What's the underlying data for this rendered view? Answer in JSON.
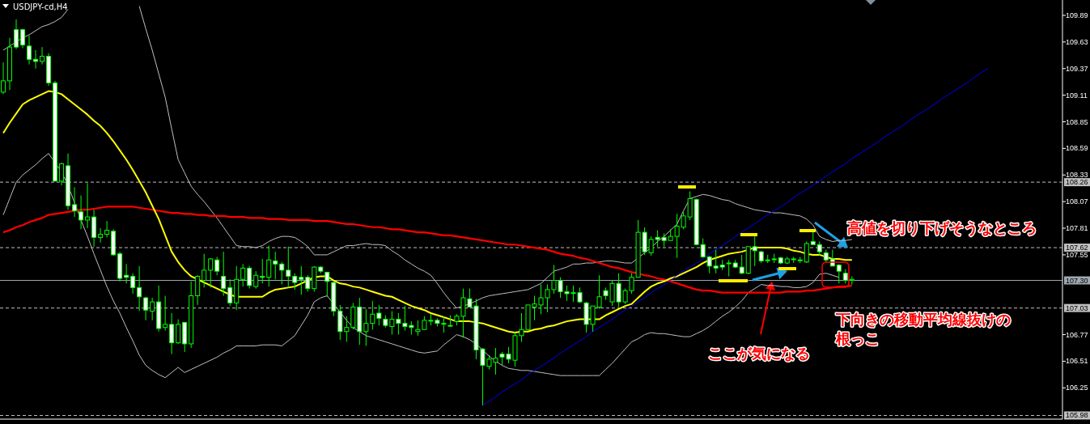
{
  "chart_data": {
    "type": "candlestick",
    "title": "USDJPY-cd,H4",
    "categories": [
      null,
      null,
      null,
      null,
      null,
      null,
      null,
      null,
      null,
      null,
      null,
      null,
      null,
      null,
      null,
      null,
      null,
      null,
      null,
      null,
      null,
      null,
      null,
      null,
      null,
      null,
      null,
      null,
      null,
      null,
      null,
      null,
      null,
      null,
      null,
      null,
      null,
      null,
      null,
      null,
      null,
      null,
      null,
      null,
      null,
      null,
      null,
      null,
      null,
      null,
      null,
      null,
      null,
      null,
      null,
      null,
      null,
      null,
      null,
      null,
      null,
      null,
      null,
      null,
      null,
      null,
      null,
      null,
      null,
      null,
      null,
      null,
      null,
      null,
      null,
      null,
      null,
      null,
      null,
      null,
      null,
      null,
      null,
      null,
      null,
      null,
      null,
      null,
      null,
      null,
      null,
      null,
      null,
      null,
      null,
      null,
      null,
      null,
      null,
      null,
      null,
      null,
      null,
      null,
      null,
      null,
      null,
      null,
      null,
      null,
      null,
      null,
      null,
      null,
      null,
      null,
      null,
      null,
      null,
      null,
      null,
      null,
      null,
      null,
      null,
      null,
      null,
      null,
      null,
      null,
      null,
      null,
      null,
      null,
      null,
      null,
      null,
      null,
      null,
      null,
      null,
      null,
      null,
      null,
      null,
      null,
      null,
      null,
      null,
      null,
      null,
      null,
      null,
      null,
      null,
      null,
      null,
      null,
      null,
      null,
      null,
      null,
      null,
      null
    ],
    "ohlc": [
      [
        109.14,
        109.43,
        109.12,
        109.25
      ],
      [
        109.25,
        109.67,
        109.16,
        109.58
      ],
      [
        109.75,
        109.85,
        109.56,
        109.58
      ],
      [
        109.75,
        109.76,
        109.57,
        109.6
      ],
      [
        109.59,
        109.69,
        109.41,
        109.46
      ],
      [
        109.46,
        109.55,
        109.37,
        109.44
      ],
      [
        109.44,
        109.58,
        109.41,
        109.49
      ],
      [
        109.49,
        109.52,
        109.2,
        109.23
      ],
      [
        109.23,
        109.25,
        108.27,
        108.27
      ],
      [
        108.27,
        108.45,
        108.23,
        108.44
      ],
      [
        108.42,
        108.54,
        107.99,
        108.03
      ],
      [
        108.04,
        108.21,
        107.92,
        107.98
      ],
      [
        107.97,
        108.13,
        107.8,
        107.89
      ],
      [
        107.89,
        108.25,
        107.81,
        107.92
      ],
      [
        107.92,
        107.99,
        107.63,
        107.72
      ],
      [
        107.72,
        107.81,
        107.67,
        107.75
      ],
      [
        107.75,
        107.88,
        107.72,
        107.79
      ],
      [
        107.78,
        107.8,
        107.54,
        107.55
      ],
      [
        107.56,
        107.58,
        107.29,
        107.32
      ],
      [
        107.35,
        107.46,
        107.27,
        107.33
      ],
      [
        107.34,
        107.37,
        107.17,
        107.23
      ],
      [
        107.23,
        107.44,
        107.0,
        107.14
      ],
      [
        107.13,
        107.14,
        106.91,
        107.01
      ],
      [
        107.0,
        107.13,
        106.91,
        107.09
      ],
      [
        107.09,
        107.25,
        106.8,
        106.83
      ],
      [
        106.84,
        107.15,
        106.81,
        106.87
      ],
      [
        106.87,
        106.98,
        106.58,
        106.69
      ],
      [
        106.69,
        106.92,
        106.68,
        106.87
      ],
      [
        106.89,
        106.89,
        106.6,
        106.68
      ],
      [
        106.68,
        107.29,
        106.64,
        107.15
      ],
      [
        107.15,
        107.35,
        107.06,
        107.34
      ],
      [
        107.3,
        107.56,
        107.23,
        107.4
      ],
      [
        107.4,
        107.52,
        107.23,
        107.51
      ],
      [
        107.5,
        107.53,
        107.35,
        107.39
      ],
      [
        107.34,
        107.58,
        107.15,
        107.22
      ],
      [
        107.23,
        107.31,
        107.05,
        107.08
      ],
      [
        107.08,
        107.44,
        107.01,
        107.31
      ],
      [
        107.31,
        107.46,
        107.24,
        107.42
      ],
      [
        107.42,
        107.44,
        107.22,
        107.25
      ],
      [
        107.24,
        107.39,
        107.22,
        107.35
      ],
      [
        107.34,
        107.51,
        107.27,
        107.33
      ],
      [
        107.33,
        107.64,
        107.24,
        107.5
      ],
      [
        107.49,
        107.58,
        107.31,
        107.46
      ],
      [
        107.46,
        107.48,
        107.26,
        107.4
      ],
      [
        107.4,
        107.63,
        107.23,
        107.34
      ],
      [
        107.34,
        107.37,
        107.21,
        107.28
      ],
      [
        107.33,
        107.44,
        107.16,
        107.31
      ],
      [
        107.33,
        107.35,
        107.19,
        107.22
      ],
      [
        107.22,
        107.44,
        107.19,
        107.43
      ],
      [
        107.43,
        107.44,
        107.37,
        107.39
      ],
      [
        107.38,
        107.38,
        107.14,
        107.29
      ],
      [
        107.28,
        107.29,
        106.95,
        107.0
      ],
      [
        107.0,
        107.06,
        106.72,
        106.8
      ],
      [
        106.8,
        106.95,
        106.7,
        106.84
      ],
      [
        106.84,
        107.08,
        106.82,
        107.04
      ],
      [
        107.04,
        107.13,
        106.67,
        106.8
      ],
      [
        106.8,
        107.02,
        106.66,
        106.88
      ],
      [
        106.88,
        107.1,
        106.82,
        106.97
      ],
      [
        106.98,
        107.06,
        106.86,
        106.93
      ],
      [
        106.92,
        106.96,
        106.84,
        106.86
      ],
      [
        106.85,
        107.0,
        106.77,
        106.92
      ],
      [
        106.92,
        106.98,
        106.77,
        106.88
      ],
      [
        106.88,
        107.05,
        106.81,
        106.85
      ],
      [
        106.86,
        106.9,
        106.77,
        106.84
      ],
      [
        106.8,
        106.91,
        106.76,
        106.82
      ],
      [
        106.82,
        106.95,
        106.82,
        106.91
      ],
      [
        106.91,
        106.97,
        106.86,
        106.91
      ],
      [
        106.91,
        106.93,
        106.85,
        106.88
      ],
      [
        106.88,
        106.95,
        106.79,
        106.88
      ],
      [
        106.86,
        106.96,
        106.85,
        106.86
      ],
      [
        106.9,
        106.97,
        106.86,
        106.95
      ],
      [
        106.95,
        107.22,
        106.74,
        107.13
      ],
      [
        107.12,
        107.22,
        107.04,
        107.04
      ],
      [
        107.05,
        107.12,
        106.53,
        106.62
      ],
      [
        106.63,
        106.64,
        106.08,
        106.47
      ],
      [
        106.46,
        106.57,
        106.43,
        106.53
      ],
      [
        106.5,
        106.64,
        106.38,
        106.54
      ],
      [
        106.58,
        106.6,
        106.47,
        106.55
      ],
      [
        106.58,
        106.65,
        106.49,
        106.53
      ],
      [
        106.52,
        106.79,
        106.46,
        106.76
      ],
      [
        106.76,
        106.98,
        106.7,
        106.82
      ],
      [
        106.82,
        107.06,
        106.82,
        107.06
      ],
      [
        107.04,
        107.15,
        106.91,
        107.07
      ],
      [
        107.06,
        107.26,
        106.97,
        107.13
      ],
      [
        107.13,
        107.26,
        106.99,
        107.21
      ],
      [
        107.21,
        107.45,
        107.17,
        107.3
      ],
      [
        107.3,
        107.33,
        107.13,
        107.19
      ],
      [
        107.19,
        107.25,
        107.1,
        107.17
      ],
      [
        107.18,
        107.25,
        107.09,
        107.18
      ],
      [
        107.18,
        107.23,
        107.08,
        107.09
      ],
      [
        107.08,
        107.09,
        106.79,
        106.87
      ],
      [
        106.87,
        107.05,
        106.8,
        107.05
      ],
      [
        107.04,
        107.35,
        107.02,
        107.14
      ],
      [
        107.2,
        107.23,
        107.11,
        107.15
      ],
      [
        107.09,
        107.3,
        107.05,
        107.27
      ],
      [
        107.27,
        107.37,
        107.04,
        107.09
      ],
      [
        107.09,
        107.22,
        107.07,
        107.2
      ],
      [
        107.2,
        107.37,
        107.17,
        107.33
      ],
      [
        107.33,
        107.89,
        107.33,
        107.77
      ],
      [
        107.77,
        107.82,
        107.55,
        107.58
      ],
      [
        107.57,
        107.73,
        107.54,
        107.7
      ],
      [
        107.72,
        107.79,
        107.63,
        107.7
      ],
      [
        107.72,
        107.76,
        107.63,
        107.69
      ],
      [
        107.69,
        107.8,
        107.69,
        107.73
      ],
      [
        107.73,
        107.95,
        107.52,
        107.83
      ],
      [
        107.82,
        107.97,
        107.8,
        107.93
      ],
      [
        107.92,
        108.17,
        107.89,
        108.1
      ],
      [
        108.09,
        108.1,
        107.65,
        107.65
      ],
      [
        107.65,
        107.71,
        107.52,
        107.53
      ],
      [
        107.53,
        107.54,
        107.37,
        107.44
      ],
      [
        107.44,
        107.6,
        107.37,
        107.42
      ],
      [
        107.45,
        107.5,
        107.4,
        107.43
      ],
      [
        107.47,
        107.5,
        107.34,
        107.47
      ],
      [
        107.47,
        107.5,
        107.42,
        107.43
      ],
      [
        107.43,
        107.55,
        107.36,
        107.37
      ],
      [
        107.37,
        107.63,
        107.36,
        107.63
      ],
      [
        107.63,
        107.73,
        107.44,
        107.59
      ],
      [
        107.58,
        107.59,
        107.47,
        107.49
      ],
      [
        107.5,
        107.55,
        107.47,
        107.5
      ],
      [
        107.51,
        107.56,
        107.47,
        107.51
      ],
      [
        107.52,
        107.53,
        107.46,
        107.47
      ],
      [
        107.47,
        107.53,
        107.46,
        107.51
      ],
      [
        107.51,
        107.53,
        107.47,
        107.51
      ],
      [
        107.5,
        107.53,
        107.47,
        107.5
      ],
      [
        107.48,
        107.68,
        107.47,
        107.66
      ],
      [
        107.68,
        107.79,
        107.65,
        107.65
      ],
      [
        107.65,
        107.68,
        107.54,
        107.58
      ],
      [
        107.57,
        107.6,
        107.48,
        107.5
      ],
      [
        107.51,
        107.6,
        107.44,
        107.44
      ],
      [
        107.45,
        107.46,
        107.27,
        107.39
      ],
      [
        107.37,
        107.41,
        107.27,
        107.3
      ],
      [
        107.3,
        107.34,
        107.26,
        107.31
      ],
      null,
      null,
      null,
      null,
      null,
      null,
      null,
      null,
      null,
      null,
      null,
      null,
      null,
      null,
      null,
      null,
      null,
      null,
      null,
      null,
      null,
      null,
      null,
      null,
      null,
      null,
      null,
      null,
      null,
      null,
      null,
      null
    ],
    "series": [
      {
        "type": "line",
        "color": "#c0c0c0",
        "values": [
          109.55,
          109.59,
          109.63,
          109.67,
          109.7,
          109.74,
          109.78,
          109.8,
          109.83,
          109.87,
          109.95,
          null,
          null,
          null,
          null,
          null,
          null,
          null,
          null,
          null,
          null,
          109.98,
          109.76,
          109.55,
          109.32,
          109.09,
          108.78,
          108.48,
          108.35,
          108.22,
          108.14,
          108.07,
          107.99,
          107.91,
          107.82,
          107.73,
          107.64,
          107.63,
          107.63,
          107.62,
          107.64,
          107.68,
          107.71,
          107.73,
          107.73,
          107.72,
          107.68,
          107.63,
          107.55,
          107.55,
          107.55,
          107.58,
          107.61,
          107.64,
          107.64,
          107.65,
          107.66,
          107.65,
          107.65,
          107.64,
          107.59,
          107.55,
          107.5,
          107.46,
          107.42,
          107.39,
          107.35,
          107.27,
          107.18,
          107.1,
          107.03,
          107.05,
          107.07,
          107.1,
          107.13,
          107.15,
          107.16,
          107.17,
          107.18,
          107.19,
          107.2,
          107.21,
          107.24,
          107.27,
          107.33,
          107.39,
          107.41,
          107.43,
          107.46,
          107.46,
          107.47,
          107.47,
          107.48,
          107.49,
          107.49,
          107.48,
          107.47,
          107.47,
          107.52,
          107.57,
          107.62,
          107.68,
          107.73,
          107.79,
          107.85,
          107.98,
          108.1,
          108.12,
          108.14,
          108.13,
          108.11,
          108.09,
          108.08,
          108.05,
          108.03,
          108.01,
          107.99,
          107.98,
          107.97,
          107.96,
          107.96,
          107.95,
          107.94,
          107.93,
          107.9,
          107.84,
          107.73,
          107.7,
          107.68,
          107.69,
          107.69,
          107.7,
          null,
          null,
          null,
          null,
          null,
          null,
          null,
          null,
          null,
          null,
          null,
          null,
          null,
          null,
          null,
          null,
          null,
          null,
          null,
          null,
          null,
          null,
          null,
          null,
          null,
          null,
          null,
          null,
          null,
          null,
          null,
          null
        ]
      },
      {
        "type": "line",
        "color": "#c0c0c0",
        "values": [
          107.94,
          108.1,
          108.26,
          108.33,
          108.38,
          108.43,
          108.49,
          108.54,
          108.45,
          108.36,
          108.23,
          108.06,
          107.89,
          107.73,
          107.56,
          107.4,
          107.24,
          107.1,
          106.98,
          106.84,
          106.71,
          106.57,
          106.47,
          106.42,
          106.38,
          106.35,
          106.4,
          106.45,
          106.4,
          106.43,
          106.46,
          106.49,
          106.52,
          106.55,
          106.59,
          106.62,
          106.66,
          106.66,
          106.66,
          106.66,
          106.67,
          106.67,
          106.67,
          106.66,
          106.71,
          106.76,
          106.86,
          106.96,
          107.09,
          107.13,
          107.15,
          107.07,
          106.99,
          106.91,
          106.84,
          106.8,
          106.76,
          106.74,
          106.72,
          106.7,
          106.68,
          106.66,
          106.64,
          106.62,
          106.6,
          106.59,
          106.6,
          106.61,
          106.67,
          106.72,
          106.77,
          106.75,
          106.72,
          106.68,
          106.62,
          106.56,
          106.51,
          106.47,
          106.44,
          106.43,
          106.42,
          106.42,
          106.41,
          106.4,
          106.39,
          106.38,
          106.37,
          106.37,
          106.37,
          106.37,
          106.37,
          106.37,
          106.37,
          106.43,
          106.49,
          106.56,
          106.63,
          106.7,
          106.73,
          106.77,
          106.79,
          106.78,
          106.78,
          106.77,
          106.76,
          106.75,
          106.75,
          106.78,
          106.81,
          106.85,
          106.9,
          106.95,
          106.99,
          107.04,
          107.1,
          107.18,
          107.22,
          107.26,
          107.25,
          107.25,
          107.24,
          107.24,
          107.23,
          107.23,
          107.24,
          107.28,
          107.36,
          107.37,
          107.35,
          107.33,
          null,
          null,
          null,
          null,
          null,
          null,
          null,
          null,
          null,
          null,
          null,
          null,
          null,
          null,
          null,
          null,
          null,
          null,
          null,
          null,
          null,
          null,
          null,
          null,
          null,
          null,
          null,
          null,
          null,
          null,
          null,
          null,
          null,
          null
        ]
      },
      {
        "type": "line",
        "color": "#ff0000",
        "values": [
          107.77,
          107.79,
          107.82,
          107.84,
          107.87,
          107.89,
          107.91,
          107.94,
          107.95,
          107.96,
          107.97,
          107.98,
          107.99,
          107.99,
          108.0,
          108.01,
          108.02,
          108.02,
          108.02,
          108.02,
          108.02,
          108.01,
          108.0,
          107.99,
          107.98,
          107.97,
          107.96,
          107.96,
          107.95,
          107.95,
          107.94,
          107.94,
          107.93,
          107.93,
          107.93,
          107.92,
          107.92,
          107.92,
          107.91,
          107.91,
          107.91,
          107.9,
          107.9,
          107.9,
          107.89,
          107.89,
          107.89,
          107.89,
          107.88,
          107.88,
          107.88,
          107.87,
          107.86,
          107.85,
          107.85,
          107.84,
          107.83,
          107.82,
          107.82,
          107.81,
          107.8,
          107.8,
          107.79,
          107.78,
          107.77,
          107.77,
          107.76,
          107.75,
          107.74,
          107.74,
          107.73,
          107.72,
          107.71,
          107.7,
          107.69,
          107.68,
          107.67,
          107.66,
          107.65,
          107.65,
          107.64,
          107.63,
          107.62,
          107.61,
          107.6,
          107.58,
          107.56,
          107.55,
          107.54,
          107.52,
          107.51,
          107.49,
          107.47,
          107.45,
          107.43,
          107.42,
          107.4,
          107.38,
          107.37,
          107.35,
          107.34,
          107.32,
          107.31,
          107.29,
          107.27,
          107.25,
          107.23,
          107.21,
          107.2,
          107.2,
          107.19,
          107.18,
          107.18,
          107.18,
          107.18,
          107.18,
          107.18,
          107.18,
          107.18,
          107.18,
          107.18,
          107.19,
          107.19,
          107.19,
          107.2,
          107.2,
          107.21,
          107.22,
          107.23,
          107.24,
          107.24,
          107.25,
          null,
          null,
          null,
          null,
          null,
          null,
          null,
          null,
          null,
          null,
          null,
          null,
          null,
          null,
          null,
          null,
          null,
          null,
          null,
          null,
          null,
          null,
          null,
          null,
          null,
          null,
          null,
          null,
          null,
          null,
          null,
          null
        ]
      },
      {
        "type": "line",
        "color": "#ffff00",
        "values": [
          108.74,
          108.84,
          108.93,
          109.02,
          109.06,
          109.09,
          109.12,
          109.15,
          109.14,
          109.12,
          109.07,
          109.02,
          108.97,
          108.92,
          108.86,
          108.81,
          108.74,
          108.66,
          108.57,
          108.48,
          108.38,
          108.27,
          108.16,
          108.03,
          107.9,
          107.74,
          107.58,
          107.48,
          107.4,
          107.34,
          107.31,
          107.28,
          107.25,
          107.22,
          107.19,
          107.16,
          107.14,
          107.14,
          107.14,
          107.14,
          107.14,
          107.18,
          107.21,
          107.22,
          107.23,
          107.24,
          107.27,
          107.3,
          107.33,
          107.34,
          107.34,
          107.3,
          107.27,
          107.26,
          107.24,
          107.23,
          107.21,
          107.19,
          107.17,
          107.15,
          107.14,
          107.11,
          107.08,
          107.05,
          107.03,
          107.01,
          106.98,
          106.96,
          106.94,
          106.92,
          106.9,
          106.9,
          106.9,
          106.89,
          106.88,
          106.86,
          106.84,
          106.82,
          106.8,
          106.79,
          106.8,
          106.8,
          106.82,
          106.83,
          106.85,
          106.86,
          106.88,
          106.9,
          106.91,
          106.92,
          106.92,
          106.92,
          106.92,
          106.96,
          106.99,
          107.02,
          107.05,
          107.07,
          107.13,
          107.19,
          107.24,
          107.27,
          107.29,
          107.32,
          107.34,
          107.37,
          107.4,
          107.43,
          107.47,
          107.5,
          107.52,
          107.54,
          107.56,
          107.57,
          107.58,
          107.6,
          107.62,
          107.62,
          107.62,
          107.62,
          107.62,
          107.61,
          107.59,
          107.58,
          107.56,
          107.55,
          107.55,
          107.53,
          107.51,
          107.51,
          107.5,
          107.5,
          null,
          null,
          null,
          null,
          null,
          null,
          null,
          null,
          null,
          null,
          null,
          null,
          null,
          null,
          null,
          null,
          null,
          null,
          null,
          null,
          null,
          null,
          null,
          null,
          null,
          null,
          null,
          null,
          null,
          null,
          null,
          null
        ]
      },
      {
        "type": "line",
        "color": "#0000ff",
        "values": [
          null,
          null,
          null,
          null,
          null,
          null,
          null,
          null,
          null,
          null,
          null,
          null,
          null,
          null,
          null,
          null,
          null,
          null,
          null,
          null,
          null,
          null,
          null,
          null,
          null,
          null,
          null,
          null,
          null,
          null,
          null,
          null,
          null,
          null,
          null,
          null,
          null,
          null,
          null,
          null,
          null,
          null,
          null,
          null,
          null,
          null,
          null,
          null,
          null,
          null,
          null,
          null,
          null,
          null,
          null,
          null,
          null,
          null,
          null,
          null,
          null,
          null,
          null,
          null,
          null,
          null,
          null,
          null,
          null,
          null,
          null,
          null,
          null,
          null,
          106.08,
          106.12,
          106.16,
          106.21,
          106.25,
          106.29,
          106.33,
          106.38,
          106.42,
          106.46,
          106.5,
          106.54,
          106.59,
          106.63,
          106.67,
          106.71,
          106.75,
          106.8,
          106.84,
          106.88,
          106.92,
          106.97,
          107.01,
          107.05,
          107.09,
          107.13,
          107.18,
          107.22,
          107.26,
          107.3,
          107.35,
          107.39,
          107.43,
          107.47,
          107.51,
          107.56,
          107.6,
          107.64,
          107.68,
          107.73,
          107.77,
          107.81,
          107.85,
          107.9,
          107.94,
          107.98,
          108.02,
          108.06,
          108.11,
          108.15,
          108.19,
          108.23,
          108.27,
          108.32,
          108.36,
          108.4,
          108.44,
          108.49,
          108.53,
          108.57,
          108.61,
          108.65,
          108.7,
          108.74,
          108.78,
          108.82,
          108.87,
          108.91,
          108.95,
          108.99,
          109.03,
          109.08,
          109.12,
          109.16,
          109.2,
          109.24,
          109.29,
          109.33,
          109.37,
          null,
          null,
          null,
          null,
          null,
          null,
          null,
          null,
          null,
          null,
          null
        ]
      }
    ],
    "ylim": [
      105.96,
      110.04
    ],
    "yticks": [
      106.25,
      106.51,
      106.77,
      107.55,
      107.81,
      108.07,
      108.33,
      108.59,
      108.85,
      109.11,
      109.37,
      109.63,
      109.89
    ],
    "tick_labels": "y",
    "ref_lines": [
      {
        "axis": "y",
        "value": 108.26,
        "label": "108.26",
        "color": "#c0c0c0",
        "line_style": "dashed"
      },
      {
        "axis": "y",
        "value": 107.62,
        "label": "107.62",
        "color": "#c0c0c0",
        "line_style": "dashed"
      },
      {
        "axis": "y",
        "value": 107.3,
        "label": "107.30",
        "color": "#a0a8b0",
        "line_style": "solid"
      },
      {
        "axis": "y",
        "value": 107.03,
        "label": "107.03",
        "color": "#c0c0c0",
        "line_style": "dashed"
      },
      {
        "axis": "y",
        "value": 105.98,
        "label": "105.98",
        "color": "#c0c0c0",
        "line_style": "dashed"
      }
    ],
    "annotations": [
      "高値を切り下げそうなところ",
      "下向きの移動平均線抜けの根っこ",
      "ここが気になる"
    ]
  }
}
